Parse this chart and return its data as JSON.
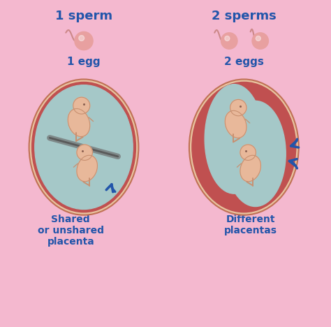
{
  "background_color": "#f4b8cf",
  "title_color": "#2b6cb0",
  "text_color": "#2255aa",
  "label_color": "#1a4fa0",
  "left_title": "1 sperm",
  "left_subtitle": "1 egg",
  "left_caption_line1": "Shared",
  "left_caption_line2": "or unshared",
  "left_caption_line3": "placenta",
  "right_title": "2 sperms",
  "right_subtitle": "2 eggs",
  "right_caption_line1": "Different",
  "right_caption_line2": "placentas",
  "sperm_color": "#e8a0a0",
  "sperm_tail_color": "#cc8888",
  "egg_outer_color": "#d9756e",
  "egg_inner_color": "#8ecfce",
  "womb_outer_color": "#d4856e",
  "womb_inner_color": "#a5c8c8",
  "placenta_color_shared": "#888888",
  "placenta_color_diff": "#c05050",
  "baby_skin_color": "#e8b89a",
  "baby_outline_color": "#c89070",
  "arrow_color": "#2255aa",
  "womb_border_color": "#c07055"
}
